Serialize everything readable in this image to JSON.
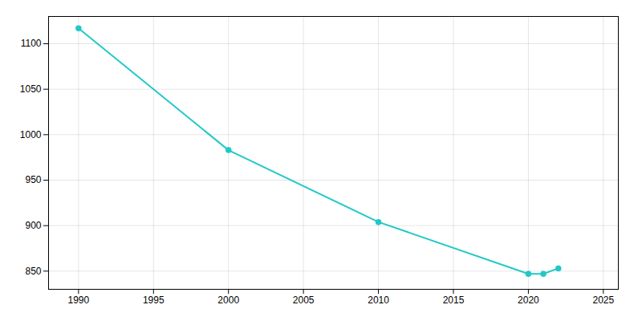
{
  "chart_data": {
    "type": "line",
    "x": [
      1990,
      2000,
      2010,
      2020,
      2021,
      2022
    ],
    "values": [
      1117,
      983,
      904,
      847,
      847,
      853
    ],
    "color": "#22C8C8",
    "marker": "circle",
    "xlim": [
      1988,
      2026
    ],
    "ylim": [
      830,
      1130
    ],
    "xticks": [
      1990,
      1995,
      2000,
      2005,
      2010,
      2015,
      2020,
      2025
    ],
    "yticks": [
      850,
      900,
      950,
      1000,
      1050,
      1100
    ],
    "grid": true
  }
}
